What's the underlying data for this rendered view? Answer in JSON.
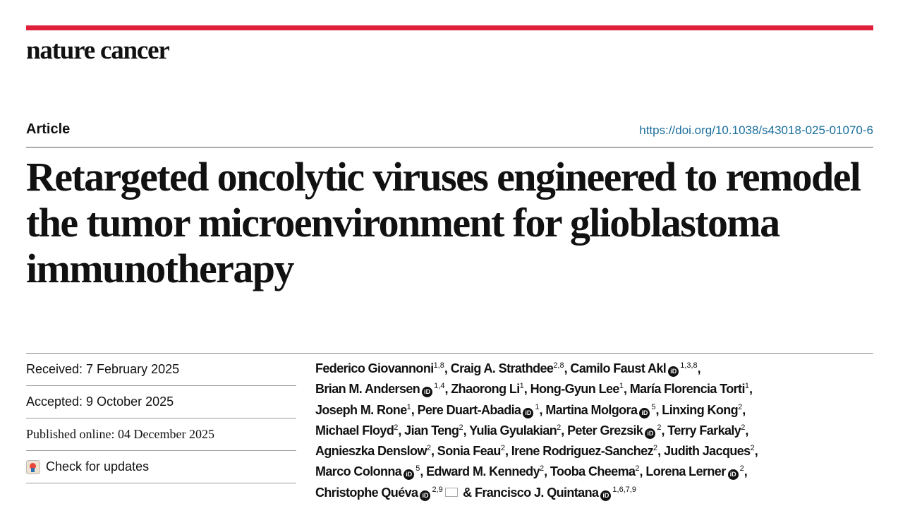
{
  "journal": {
    "name": "nature cancer",
    "brand_color": "#e0203a"
  },
  "article_type": "Article",
  "doi": "https://doi.org/10.1038/s43018-025-01070-6",
  "title": "Retargeted oncolytic viruses engineered to remodel the tumor microenvironment for glioblastoma immunotherapy",
  "dates": {
    "received": "Received: 7 February 2025",
    "accepted": "Accepted: 9 October 2025",
    "published": "Published online: 04 December 2025"
  },
  "check_updates": "Check for updates",
  "authors": [
    {
      "name": "Federico Giovannoni",
      "sup": "1,8",
      "orcid": false
    },
    {
      "name": "Craig A. Strathdee",
      "sup": "2,8",
      "orcid": false
    },
    {
      "name": "Camilo Faust Akl",
      "sup": "1,3,8",
      "orcid": true
    },
    {
      "name": "Brian M. Andersen",
      "sup": "1,4",
      "orcid": true
    },
    {
      "name": "Zhaorong Li",
      "sup": "1",
      "orcid": false
    },
    {
      "name": "Hong-Gyun Lee",
      "sup": "1",
      "orcid": false
    },
    {
      "name": "María Florencia Torti",
      "sup": "1",
      "orcid": false
    },
    {
      "name": "Joseph M. Rone",
      "sup": "1",
      "orcid": false
    },
    {
      "name": "Pere Duart-Abadia",
      "sup": "1",
      "orcid": true
    },
    {
      "name": "Martina Molgora",
      "sup": "5",
      "orcid": true
    },
    {
      "name": "Linxing Kong",
      "sup": "2",
      "orcid": false
    },
    {
      "name": "Michael Floyd",
      "sup": "2",
      "orcid": false
    },
    {
      "name": "Jian Teng",
      "sup": "2",
      "orcid": false
    },
    {
      "name": "Yulia Gyulakian",
      "sup": "2",
      "orcid": false
    },
    {
      "name": "Peter Grezsik",
      "sup": "2",
      "orcid": true
    },
    {
      "name": "Terry Farkaly",
      "sup": "2",
      "orcid": false
    },
    {
      "name": "Agnieszka Denslow",
      "sup": "2",
      "orcid": false
    },
    {
      "name": "Sonia Feau",
      "sup": "2",
      "orcid": false
    },
    {
      "name": "Irene Rodriguez-Sanchez",
      "sup": "2",
      "orcid": false
    },
    {
      "name": "Judith Jacques",
      "sup": "2",
      "orcid": false
    },
    {
      "name": "Marco Colonna",
      "sup": "5",
      "orcid": true
    },
    {
      "name": "Edward M. Kennedy",
      "sup": "2",
      "orcid": false
    },
    {
      "name": "Tooba Cheema",
      "sup": "2",
      "orcid": false
    },
    {
      "name": "Lorena Lerner",
      "sup": "2",
      "orcid": true
    },
    {
      "name": "Christophe Quéva",
      "sup": "2,9",
      "orcid": true,
      "email": true
    },
    {
      "name": "Francisco J. Quintana",
      "sup": "1,6,7,9",
      "orcid": true
    }
  ],
  "author_conjunction": "&",
  "orcid_icon_label": "iD"
}
